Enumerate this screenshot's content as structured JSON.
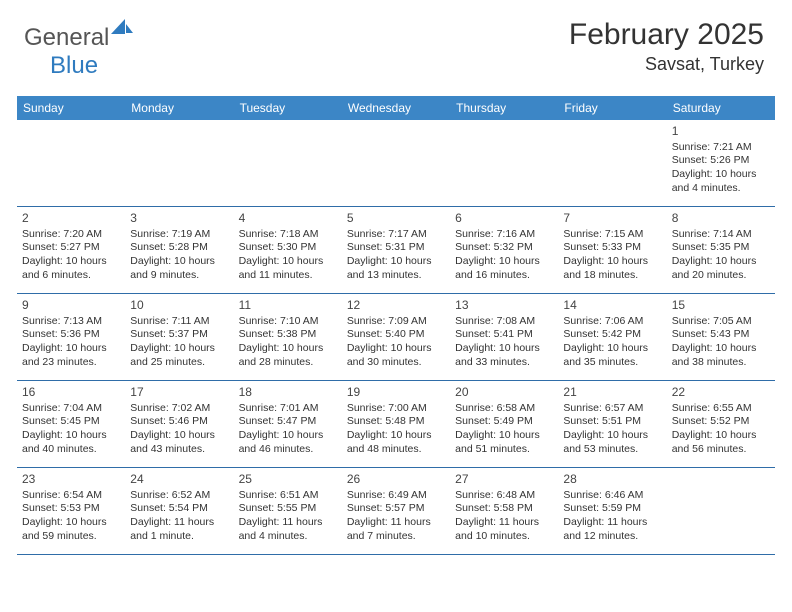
{
  "brand": {
    "word1": "General",
    "word2": "Blue"
  },
  "title": "February 2025",
  "location": "Savsat, Turkey",
  "colors": {
    "header_bg": "#3c86c6",
    "divider": "#2f6da8",
    "text": "#333333",
    "brand_gray": "#555555",
    "brand_blue": "#2f7bbf",
    "background": "#ffffff"
  },
  "dow": [
    "Sunday",
    "Monday",
    "Tuesday",
    "Wednesday",
    "Thursday",
    "Friday",
    "Saturday"
  ],
  "weeks": [
    [
      null,
      null,
      null,
      null,
      null,
      null,
      {
        "n": "1",
        "sr": "7:21 AM",
        "ss": "5:26 PM",
        "dl": "10 hours and 4 minutes."
      }
    ],
    [
      {
        "n": "2",
        "sr": "7:20 AM",
        "ss": "5:27 PM",
        "dl": "10 hours and 6 minutes."
      },
      {
        "n": "3",
        "sr": "7:19 AM",
        "ss": "5:28 PM",
        "dl": "10 hours and 9 minutes."
      },
      {
        "n": "4",
        "sr": "7:18 AM",
        "ss": "5:30 PM",
        "dl": "10 hours and 11 minutes."
      },
      {
        "n": "5",
        "sr": "7:17 AM",
        "ss": "5:31 PM",
        "dl": "10 hours and 13 minutes."
      },
      {
        "n": "6",
        "sr": "7:16 AM",
        "ss": "5:32 PM",
        "dl": "10 hours and 16 minutes."
      },
      {
        "n": "7",
        "sr": "7:15 AM",
        "ss": "5:33 PM",
        "dl": "10 hours and 18 minutes."
      },
      {
        "n": "8",
        "sr": "7:14 AM",
        "ss": "5:35 PM",
        "dl": "10 hours and 20 minutes."
      }
    ],
    [
      {
        "n": "9",
        "sr": "7:13 AM",
        "ss": "5:36 PM",
        "dl": "10 hours and 23 minutes."
      },
      {
        "n": "10",
        "sr": "7:11 AM",
        "ss": "5:37 PM",
        "dl": "10 hours and 25 minutes."
      },
      {
        "n": "11",
        "sr": "7:10 AM",
        "ss": "5:38 PM",
        "dl": "10 hours and 28 minutes."
      },
      {
        "n": "12",
        "sr": "7:09 AM",
        "ss": "5:40 PM",
        "dl": "10 hours and 30 minutes."
      },
      {
        "n": "13",
        "sr": "7:08 AM",
        "ss": "5:41 PM",
        "dl": "10 hours and 33 minutes."
      },
      {
        "n": "14",
        "sr": "7:06 AM",
        "ss": "5:42 PM",
        "dl": "10 hours and 35 minutes."
      },
      {
        "n": "15",
        "sr": "7:05 AM",
        "ss": "5:43 PM",
        "dl": "10 hours and 38 minutes."
      }
    ],
    [
      {
        "n": "16",
        "sr": "7:04 AM",
        "ss": "5:45 PM",
        "dl": "10 hours and 40 minutes."
      },
      {
        "n": "17",
        "sr": "7:02 AM",
        "ss": "5:46 PM",
        "dl": "10 hours and 43 minutes."
      },
      {
        "n": "18",
        "sr": "7:01 AM",
        "ss": "5:47 PM",
        "dl": "10 hours and 46 minutes."
      },
      {
        "n": "19",
        "sr": "7:00 AM",
        "ss": "5:48 PM",
        "dl": "10 hours and 48 minutes."
      },
      {
        "n": "20",
        "sr": "6:58 AM",
        "ss": "5:49 PM",
        "dl": "10 hours and 51 minutes."
      },
      {
        "n": "21",
        "sr": "6:57 AM",
        "ss": "5:51 PM",
        "dl": "10 hours and 53 minutes."
      },
      {
        "n": "22",
        "sr": "6:55 AM",
        "ss": "5:52 PM",
        "dl": "10 hours and 56 minutes."
      }
    ],
    [
      {
        "n": "23",
        "sr": "6:54 AM",
        "ss": "5:53 PM",
        "dl": "10 hours and 59 minutes."
      },
      {
        "n": "24",
        "sr": "6:52 AM",
        "ss": "5:54 PM",
        "dl": "11 hours and 1 minute."
      },
      {
        "n": "25",
        "sr": "6:51 AM",
        "ss": "5:55 PM",
        "dl": "11 hours and 4 minutes."
      },
      {
        "n": "26",
        "sr": "6:49 AM",
        "ss": "5:57 PM",
        "dl": "11 hours and 7 minutes."
      },
      {
        "n": "27",
        "sr": "6:48 AM",
        "ss": "5:58 PM",
        "dl": "11 hours and 10 minutes."
      },
      {
        "n": "28",
        "sr": "6:46 AM",
        "ss": "5:59 PM",
        "dl": "11 hours and 12 minutes."
      },
      null
    ]
  ],
  "labels": {
    "sunrise": "Sunrise:",
    "sunset": "Sunset:",
    "daylight": "Daylight:"
  }
}
